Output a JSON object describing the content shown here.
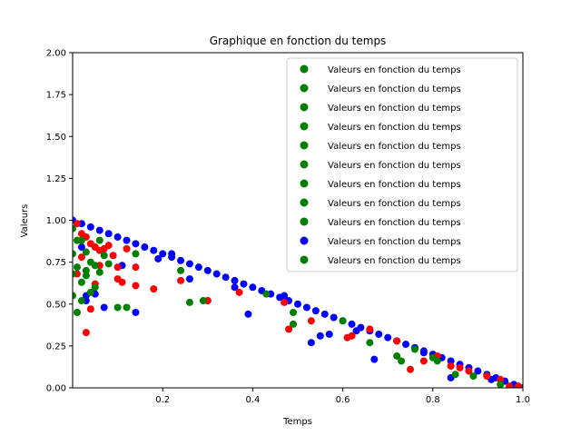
{
  "chart_data": {
    "type": "scatter",
    "title": "Graphique en fonction du temps",
    "xlabel": "Temps",
    "ylabel": "Valeurs",
    "xlim": [
      0.0,
      1.0
    ],
    "ylim": [
      0.0,
      2.0
    ],
    "x_ticks": [
      "0.2",
      "0.4",
      "0.6",
      "0.8",
      "1.0"
    ],
    "y_ticks": [
      "0.00",
      "0.25",
      "0.50",
      "0.75",
      "1.00",
      "1.25",
      "1.50",
      "1.75",
      "2.00"
    ],
    "grid": false,
    "legend_position": "top-right",
    "legend": [
      {
        "label": "Valeurs en fonction du temps",
        "color": "#008000"
      },
      {
        "label": "Valeurs en fonction du temps",
        "color": "#008000"
      },
      {
        "label": "Valeurs en fonction du temps",
        "color": "#008000"
      },
      {
        "label": "Valeurs en fonction du temps",
        "color": "#008000"
      },
      {
        "label": "Valeurs en fonction du temps",
        "color": "#008000"
      },
      {
        "label": "Valeurs en fonction du temps",
        "color": "#008000"
      },
      {
        "label": "Valeurs en fonction du temps",
        "color": "#008000"
      },
      {
        "label": "Valeurs en fonction du temps",
        "color": "#008000"
      },
      {
        "label": "Valeurs en fonction du temps",
        "color": "#008000"
      },
      {
        "label": "Valeurs en fonction du temps",
        "color": "#0000ff"
      },
      {
        "label": "Valeurs en fonction du temps",
        "color": "#008000"
      }
    ],
    "series": [
      {
        "color": "#0000ff",
        "points": [
          [
            0.0,
            1.0
          ],
          [
            0.02,
            0.98
          ],
          [
            0.04,
            0.96
          ],
          [
            0.06,
            0.94
          ],
          [
            0.08,
            0.92
          ],
          [
            0.1,
            0.9
          ],
          [
            0.12,
            0.88
          ],
          [
            0.14,
            0.86
          ],
          [
            0.16,
            0.84
          ],
          [
            0.18,
            0.82
          ],
          [
            0.2,
            0.8
          ],
          [
            0.22,
            0.78
          ],
          [
            0.24,
            0.76
          ],
          [
            0.26,
            0.74
          ],
          [
            0.28,
            0.72
          ],
          [
            0.3,
            0.7
          ],
          [
            0.32,
            0.68
          ],
          [
            0.34,
            0.66
          ],
          [
            0.36,
            0.64
          ],
          [
            0.38,
            0.62
          ],
          [
            0.4,
            0.6
          ],
          [
            0.42,
            0.58
          ],
          [
            0.44,
            0.56
          ],
          [
            0.46,
            0.54
          ],
          [
            0.48,
            0.52
          ],
          [
            0.5,
            0.5
          ],
          [
            0.52,
            0.48
          ],
          [
            0.54,
            0.46
          ],
          [
            0.56,
            0.44
          ],
          [
            0.58,
            0.42
          ],
          [
            0.6,
            0.4
          ],
          [
            0.62,
            0.38
          ],
          [
            0.64,
            0.36
          ],
          [
            0.66,
            0.34
          ],
          [
            0.68,
            0.32
          ],
          [
            0.7,
            0.3
          ],
          [
            0.72,
            0.28
          ],
          [
            0.74,
            0.26
          ],
          [
            0.76,
            0.24
          ],
          [
            0.78,
            0.22
          ],
          [
            0.8,
            0.2
          ],
          [
            0.82,
            0.18
          ],
          [
            0.84,
            0.16
          ],
          [
            0.86,
            0.14
          ],
          [
            0.88,
            0.12
          ],
          [
            0.9,
            0.1
          ],
          [
            0.92,
            0.08
          ],
          [
            0.94,
            0.06
          ],
          [
            0.96,
            0.04
          ],
          [
            0.98,
            0.02
          ],
          [
            1.0,
            0.0
          ],
          [
            0.19,
            0.77
          ],
          [
            0.26,
            0.65
          ],
          [
            0.3,
            0.52
          ],
          [
            0.39,
            0.44
          ],
          [
            0.53,
            0.27
          ],
          [
            0.57,
            0.32
          ],
          [
            0.55,
            0.31
          ],
          [
            0.67,
            0.17
          ],
          [
            0.84,
            0.06
          ],
          [
            0.14,
            0.45
          ],
          [
            0.07,
            0.48
          ],
          [
            0.03,
            0.52
          ],
          [
            0.02,
            0.84
          ],
          [
            0.03,
            0.55
          ],
          [
            0.05,
            0.56
          ],
          [
            0.11,
            0.73
          ],
          [
            0.22,
            0.8
          ],
          [
            0.36,
            0.6
          ],
          [
            0.47,
            0.55
          ],
          [
            0.63,
            0.34
          ],
          [
            0.78,
            0.21
          ],
          [
            0.93,
            0.05
          ]
        ]
      },
      {
        "color": "#ff0000",
        "points": [
          [
            0.01,
            0.98
          ],
          [
            0.02,
            0.92
          ],
          [
            0.03,
            0.9
          ],
          [
            0.03,
            0.33
          ],
          [
            0.04,
            0.86
          ],
          [
            0.05,
            0.84
          ],
          [
            0.05,
            0.62
          ],
          [
            0.06,
            0.82
          ],
          [
            0.07,
            0.83
          ],
          [
            0.08,
            0.85
          ],
          [
            0.09,
            0.79
          ],
          [
            0.1,
            0.72
          ],
          [
            0.1,
            0.65
          ],
          [
            0.11,
            0.63
          ],
          [
            0.12,
            0.83
          ],
          [
            0.14,
            0.72
          ],
          [
            0.14,
            0.61
          ],
          [
            0.18,
            0.59
          ],
          [
            0.24,
            0.64
          ],
          [
            0.3,
            0.52
          ],
          [
            0.37,
            0.57
          ],
          [
            0.47,
            0.51
          ],
          [
            0.48,
            0.35
          ],
          [
            0.53,
            0.4
          ],
          [
            0.61,
            0.3
          ],
          [
            0.62,
            0.31
          ],
          [
            0.66,
            0.35
          ],
          [
            0.72,
            0.28
          ],
          [
            0.75,
            0.11
          ],
          [
            0.78,
            0.16
          ],
          [
            0.81,
            0.19
          ],
          [
            0.84,
            0.13
          ],
          [
            0.86,
            0.12
          ],
          [
            0.88,
            0.1
          ],
          [
            0.92,
            0.07
          ],
          [
            0.95,
            0.05
          ],
          [
            0.97,
            0.01
          ],
          [
            0.99,
            0.01
          ],
          [
            0.04,
            0.47
          ],
          [
            0.01,
            0.68
          ],
          [
            0.06,
            0.73
          ],
          [
            0.02,
            0.78
          ]
        ]
      },
      {
        "color": "#008000",
        "points": [
          [
            0.0,
            0.95
          ],
          [
            0.0,
            0.8
          ],
          [
            0.0,
            0.68
          ],
          [
            0.0,
            0.55
          ],
          [
            0.01,
            0.45
          ],
          [
            0.01,
            0.88
          ],
          [
            0.01,
            0.72
          ],
          [
            0.02,
            0.63
          ],
          [
            0.02,
            0.52
          ],
          [
            0.03,
            0.81
          ],
          [
            0.03,
            0.67
          ],
          [
            0.04,
            0.57
          ],
          [
            0.04,
            0.75
          ],
          [
            0.05,
            0.73
          ],
          [
            0.06,
            0.88
          ],
          [
            0.06,
            0.69
          ],
          [
            0.07,
            0.79
          ],
          [
            0.08,
            0.74
          ],
          [
            0.1,
            0.48
          ],
          [
            0.12,
            0.48
          ],
          [
            0.14,
            0.8
          ],
          [
            0.24,
            0.7
          ],
          [
            0.26,
            0.51
          ],
          [
            0.29,
            0.52
          ],
          [
            0.43,
            0.56
          ],
          [
            0.49,
            0.45
          ],
          [
            0.49,
            0.38
          ],
          [
            0.6,
            0.4
          ],
          [
            0.66,
            0.27
          ],
          [
            0.72,
            0.19
          ],
          [
            0.73,
            0.16
          ],
          [
            0.76,
            0.23
          ],
          [
            0.8,
            0.18
          ],
          [
            0.81,
            0.16
          ],
          [
            0.85,
            0.08
          ],
          [
            0.89,
            0.07
          ],
          [
            0.95,
            0.02
          ],
          [
            0.02,
            0.88
          ],
          [
            0.05,
            0.6
          ],
          [
            0.03,
            0.7
          ]
        ]
      }
    ]
  }
}
